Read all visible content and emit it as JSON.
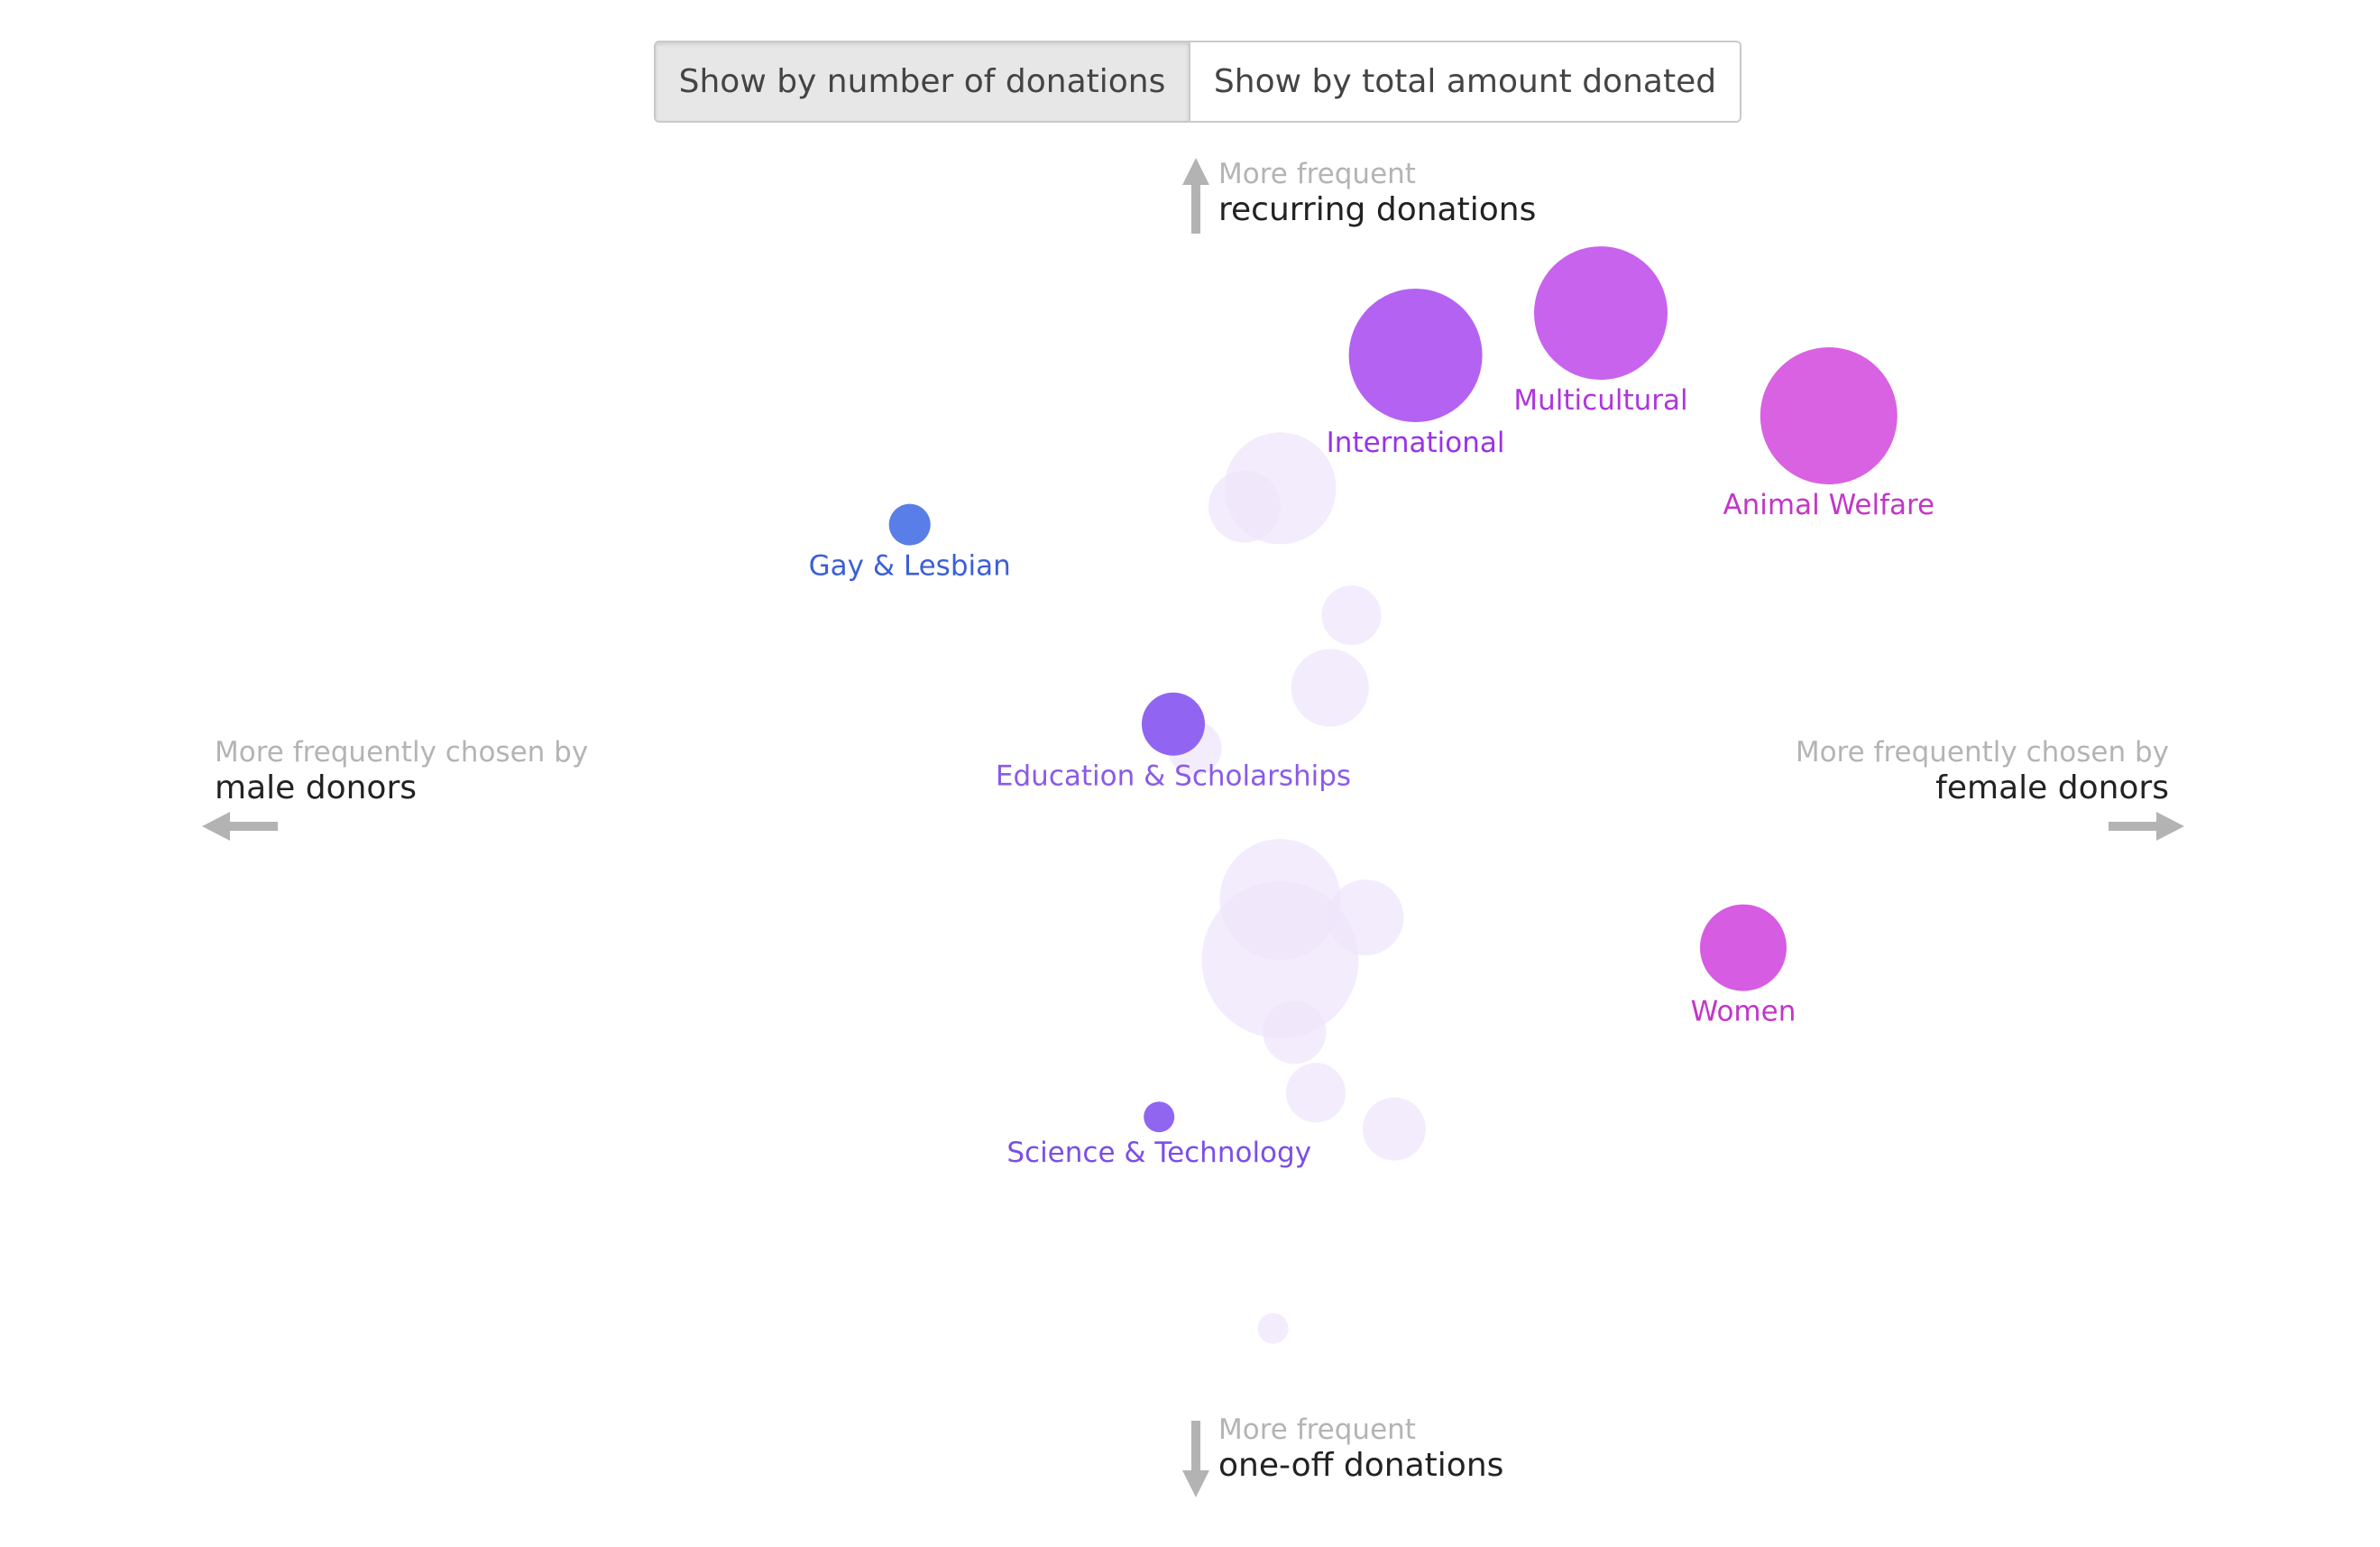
{
  "toggle": {
    "by_count_label": "Show by number of donations",
    "by_amount_label": "Show by total amount donated",
    "selected": "by_count"
  },
  "axes": {
    "top_small": "More frequent",
    "top_big": "recurring donations",
    "bottom_small": "More frequent",
    "bottom_big": "one-off donations",
    "left_small": "More frequently chosen by",
    "left_big": "male donors",
    "right_small": "More frequently chosen by",
    "right_big": "female donors"
  },
  "colors": {
    "arrow": "#b3b3b3",
    "faded": "#efe6fb"
  },
  "chart_data": {
    "type": "scatter",
    "x_meaning": "male ← → female",
    "y_meaning": "one-off ↓ ↑ recurring",
    "xlim": [
      -1,
      1
    ],
    "ylim": [
      -1,
      1
    ],
    "points": [
      {
        "label": "International",
        "x": 0.24,
        "y": 0.8,
        "r": 74,
        "color": "#b462f2",
        "label_color": "#9b32e6",
        "label_pos": "below",
        "highlighted": true
      },
      {
        "label": "Multicultural",
        "x": 0.5,
        "y": 0.87,
        "r": 74,
        "color": "#c863ed",
        "label_color": "#ae36dc",
        "label_pos": "below",
        "highlighted": true
      },
      {
        "label": "Animal Welfare",
        "x": 0.82,
        "y": 0.7,
        "r": 76,
        "color": "#d862e2",
        "label_color": "#c236c8",
        "label_pos": "below",
        "highlighted": true
      },
      {
        "label": "Gay & Lesbian",
        "x": -0.47,
        "y": 0.52,
        "r": 23,
        "color": "#5a7ee8",
        "label_color": "#3b5fd5",
        "label_pos": "below",
        "highlighted": true
      },
      {
        "label": "Education & Scholarships",
        "x": -0.1,
        "y": 0.19,
        "r": 35,
        "color": "#9165f1",
        "label_color": "#8a5ae9",
        "label_pos": "below",
        "highlighted": true
      },
      {
        "label": "Women",
        "x": 0.7,
        "y": -0.18,
        "r": 48,
        "color": "#d65ce2",
        "label_color": "#c236c8",
        "label_pos": "below",
        "highlighted": true
      },
      {
        "label": "Science & Technology",
        "x": -0.12,
        "y": -0.46,
        "r": 17,
        "color": "#9065f0",
        "label_color": "#7b4ee8",
        "label_pos": "below",
        "highlighted": true
      },
      {
        "label": "",
        "x": 0.05,
        "y": 0.58,
        "r": 62,
        "color": "#efe6fb",
        "highlighted": false
      },
      {
        "label": "",
        "x": 0.0,
        "y": 0.55,
        "r": 40,
        "color": "#efe6fb",
        "highlighted": false
      },
      {
        "label": "",
        "x": 0.15,
        "y": 0.37,
        "r": 33,
        "color": "#efe6fb",
        "highlighted": false
      },
      {
        "label": "",
        "x": 0.12,
        "y": 0.25,
        "r": 43,
        "color": "#efe6fb",
        "highlighted": false
      },
      {
        "label": "",
        "x": -0.07,
        "y": 0.15,
        "r": 30,
        "color": "#efe6fb",
        "highlighted": false
      },
      {
        "label": "",
        "x": 0.05,
        "y": -0.1,
        "r": 67,
        "color": "#efe6fb",
        "highlighted": false
      },
      {
        "label": "",
        "x": 0.05,
        "y": -0.2,
        "r": 87,
        "color": "#efe6fb",
        "highlighted": false
      },
      {
        "label": "",
        "x": 0.17,
        "y": -0.13,
        "r": 42,
        "color": "#efe6fb",
        "highlighted": false
      },
      {
        "label": "",
        "x": 0.07,
        "y": -0.32,
        "r": 35,
        "color": "#efe6fb",
        "highlighted": false
      },
      {
        "label": "",
        "x": 0.1,
        "y": -0.42,
        "r": 33,
        "color": "#efe6fb",
        "highlighted": false
      },
      {
        "label": "",
        "x": 0.21,
        "y": -0.48,
        "r": 35,
        "color": "#efe6fb",
        "highlighted": false
      },
      {
        "label": "",
        "x": 0.04,
        "y": -0.81,
        "r": 17,
        "color": "#efe6fb",
        "highlighted": false
      }
    ]
  }
}
